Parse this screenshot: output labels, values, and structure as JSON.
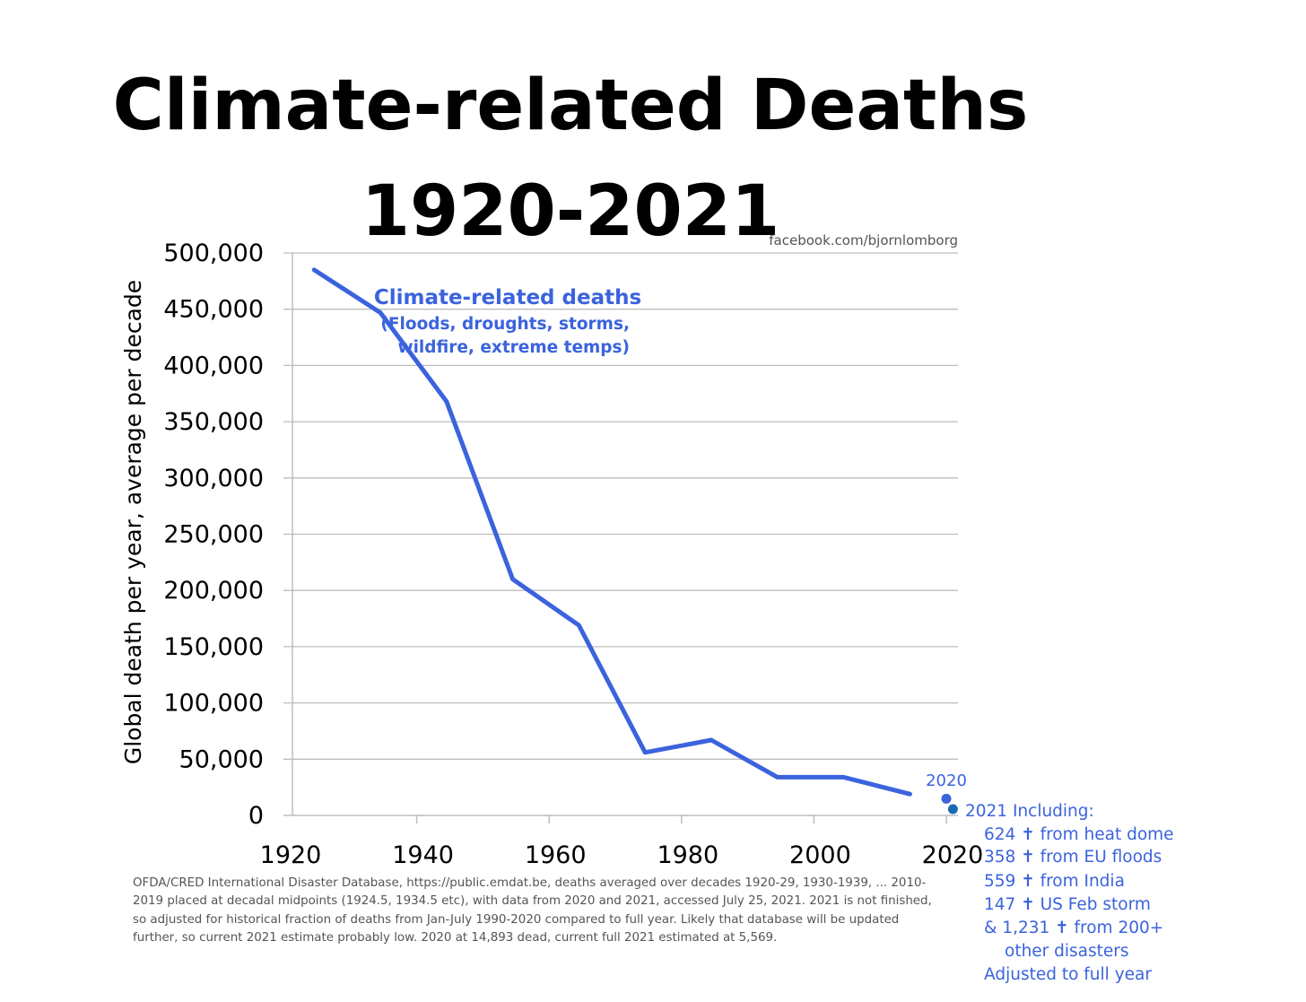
{
  "chart_data": {
    "type": "line",
    "title_line1": "Climate-related Deaths",
    "title_line2": "1920-2021",
    "credit": "facebook.com/bjornlomborg",
    "ylabel": "Global death per year, average per decade",
    "xlabel": "",
    "xlim": [
      1920,
      2020
    ],
    "ylim": [
      0,
      500000
    ],
    "grid": true,
    "x_ticks": [
      "1920",
      "1940",
      "1960",
      "1980",
      "2000",
      "2020"
    ],
    "y_ticks": [
      "0",
      "50,000",
      "100,000",
      "150,000",
      "200,000",
      "250,000",
      "300,000",
      "350,000",
      "400,000",
      "450,000",
      "500,000"
    ],
    "series": [
      {
        "name": "Climate-related deaths",
        "subtitle_line1": "(Floods, droughts, storms,",
        "subtitle_line2": "wildfire, extreme temps)",
        "color": "#3b63dd",
        "x": [
          1924.5,
          1934.5,
          1944.5,
          1954.5,
          1964.5,
          1974.5,
          1984.5,
          1994.5,
          2004.5,
          2014.5
        ],
        "y": [
          485000,
          447000,
          368000,
          210000,
          169000,
          56000,
          67000,
          34000,
          34000,
          19000
        ]
      }
    ],
    "points": [
      {
        "label": "2020",
        "x": 2020,
        "y": 14893,
        "color": "#3b63dd"
      },
      {
        "label": "2021",
        "x": 2021,
        "y": 5569,
        "color": "#1a6bb5"
      }
    ],
    "annotation_2021": [
      "2021 Including:",
      "624 ✝ from heat dome",
      "358 ✝ from EU floods",
      "559 ✝ from India",
      "147 ✝ US Feb storm",
      "& 1,231 ✝ from 200+",
      "other disasters",
      "Adjusted to full year"
    ],
    "source_note": [
      "OFDA/CRED International Disaster Database, https://public.emdat.be, deaths averaged over decades 1920-29, 1930-1939, ... 2010-",
      "2019 placed at decadal midpoints (1924.5, 1934.5 etc), with data from 2020 and 2021, accessed July 25, 2021. 2021 is not finished,",
      "so adjusted for historical fraction of deaths from Jan-July 1990-2020 compared to full year. Likely that database will be updated",
      "further, so current 2021 estimate probably low. 2020 at 14,893 dead, current full 2021 estimated at 5,569."
    ]
  }
}
